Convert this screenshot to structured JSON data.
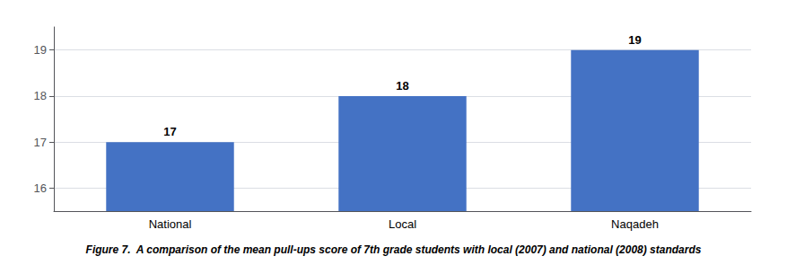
{
  "chart_data": {
    "type": "bar",
    "caption": "Figure 7.  A comparison of the mean pull-ups score of 7th grade students with local (2007) and national (2008) standards",
    "categories": [
      "National",
      "Local",
      "Naqadeh"
    ],
    "values": [
      17,
      18,
      19
    ],
    "color": "#4472C4",
    "ylim": [
      15.5,
      19.5
    ],
    "yticks": [
      16,
      17,
      18,
      19
    ],
    "grid": true,
    "data_labels": true
  }
}
